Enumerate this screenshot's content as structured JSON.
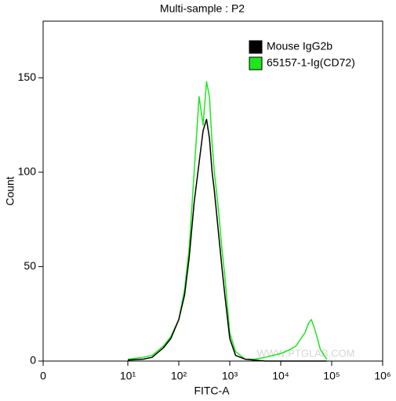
{
  "chart_data": {
    "type": "line",
    "title": "Multi-sample : P2",
    "x_label": "FITC-A",
    "y_label": "Count",
    "xscale": "biexponential",
    "xlim": [
      0,
      1000000
    ],
    "xticks": [
      0,
      {
        "value": 10,
        "label": "10¹"
      },
      {
        "value": 100,
        "label": "10²"
      },
      {
        "value": 1000,
        "label": "10³"
      },
      {
        "value": 10000,
        "label": "10⁴"
      },
      {
        "value": 100000,
        "label": "10⁵"
      },
      {
        "value": 1000000,
        "label": "10⁶"
      }
    ],
    "ylim": [
      0,
      180
    ],
    "yticks": [
      0,
      50,
      100,
      150
    ],
    "legend": "top-right",
    "watermark": "WWW.PTGLAB.COM",
    "x": [
      10,
      20,
      30,
      50,
      70,
      100,
      130,
      160,
      200,
      250,
      300,
      350,
      400,
      450,
      500,
      600,
      700,
      800,
      1000,
      1300,
      2000,
      3000,
      5000,
      10000,
      15000,
      20000,
      25000,
      30000,
      35000,
      40000,
      45000,
      50000,
      60000,
      80000
    ],
    "series": [
      {
        "name": "65157-1-Ig(CD72)",
        "color": "#1ee61e",
        "values": [
          1,
          2,
          3,
          8,
          13,
          22,
          38,
          60,
          100,
          140,
          125,
          148,
          140,
          115,
          100,
          80,
          60,
          45,
          15,
          5,
          1,
          1,
          2,
          4,
          6,
          8,
          12,
          15,
          20,
          22,
          18,
          14,
          6,
          1
        ]
      },
      {
        "name": "Mouse IgG2b",
        "color": "#000000",
        "values": [
          0.5,
          1,
          2,
          7,
          12,
          22,
          35,
          55,
          84,
          105,
          122,
          128,
          118,
          100,
          90,
          68,
          50,
          35,
          12,
          3,
          1,
          0.5,
          0,
          0,
          0,
          0,
          0,
          0,
          0,
          0,
          0,
          0,
          0,
          0
        ]
      }
    ]
  }
}
